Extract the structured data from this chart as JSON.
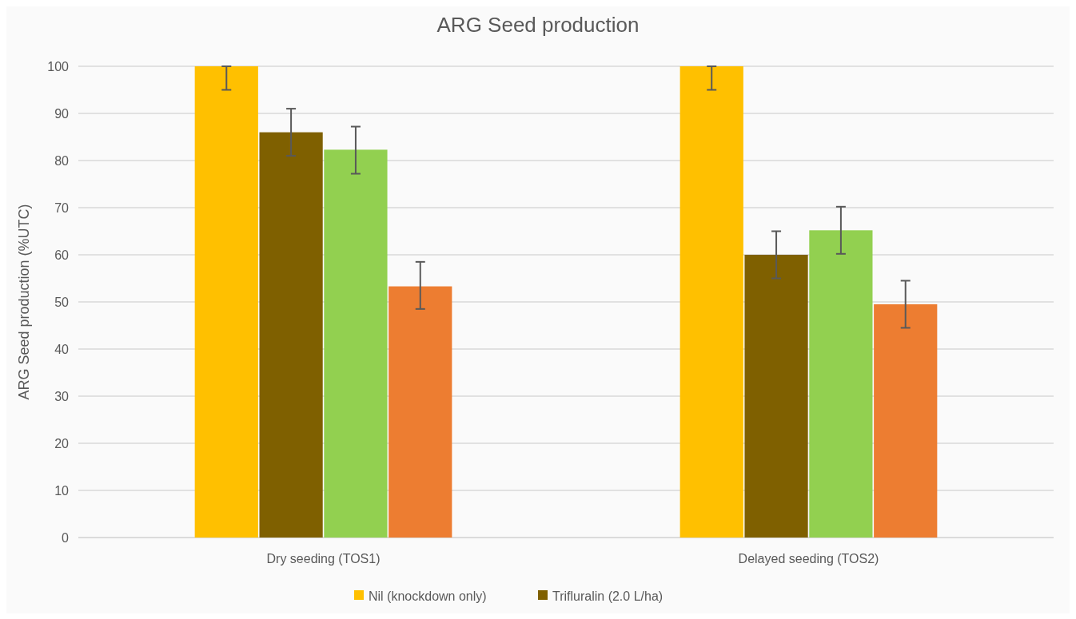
{
  "chart_data": {
    "type": "bar",
    "title": "ARG Seed production",
    "ylabel": "ARG Seed production (%UTC)",
    "categories": [
      "Dry seeding (TOS1)",
      "Delayed seeding (TOS2)"
    ],
    "series": [
      {
        "name": "Nil (knockdown only)",
        "color": "#ffc000",
        "values": [
          100,
          100
        ],
        "errors": [
          [
            95,
            100
          ],
          [
            95,
            100
          ]
        ]
      },
      {
        "name": "Trifluralin (2.0 L/ha)",
        "color": "#7f6000",
        "values": [
          86,
          60
        ],
        "errors": [
          [
            81,
            91
          ],
          [
            55,
            65
          ]
        ]
      },
      {
        "color": "#92d050",
        "values": [
          82.3,
          65.2
        ],
        "errors": [
          [
            77.2,
            87.2
          ],
          [
            60.2,
            70.2
          ]
        ]
      },
      {
        "color": "#ed7d31",
        "values": [
          53.3,
          49.5
        ],
        "errors": [
          [
            48.5,
            58.5
          ],
          [
            44.5,
            54.5
          ]
        ]
      }
    ],
    "ylim": [
      0,
      100
    ],
    "yticks": [
      0,
      10,
      20,
      30,
      40,
      50,
      60,
      70,
      80,
      90,
      100
    ],
    "grid": "y",
    "legend": "bottom"
  }
}
